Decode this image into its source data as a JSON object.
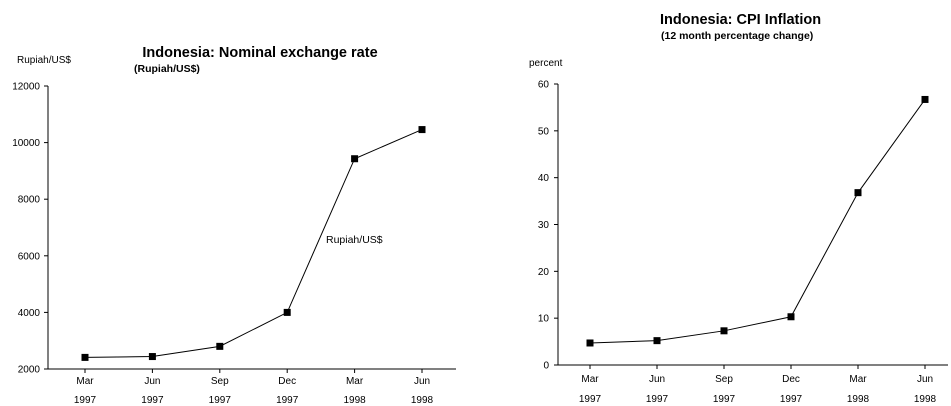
{
  "chart_data": [
    {
      "type": "line",
      "title": "Indonesia: Nominal exchange rate",
      "subtitle": "(Rupiah/US$)",
      "ylabel": "Rupiah/US$",
      "xlabel": "",
      "categories": [
        {
          "month": "Mar",
          "year": "1997"
        },
        {
          "month": "Jun",
          "year": "1997"
        },
        {
          "month": "Sep",
          "year": "1997"
        },
        {
          "month": "Dec",
          "year": "1997"
        },
        {
          "month": "Mar",
          "year": "1998"
        },
        {
          "month": "Jun",
          "year": "1998"
        }
      ],
      "ylim": [
        2000,
        12000
      ],
      "yticks": [
        2000,
        4000,
        6000,
        8000,
        10000,
        12000
      ],
      "grid": false,
      "series": [
        {
          "name": "Rupiah/US$",
          "values": [
            2410,
            2440,
            2800,
            4000,
            9430,
            10460
          ]
        }
      ],
      "annotations": [
        {
          "text": "Rupiah/US$"
        }
      ]
    },
    {
      "type": "line",
      "title": "Indonesia: CPI Inflation",
      "subtitle": "(12 month percentage change)",
      "ylabel": "percent",
      "xlabel": "",
      "categories": [
        {
          "month": "Mar",
          "year": "1997"
        },
        {
          "month": "Jun",
          "year": "1997"
        },
        {
          "month": "Sep",
          "year": "1997"
        },
        {
          "month": "Dec",
          "year": "1997"
        },
        {
          "month": "Mar",
          "year": "1998"
        },
        {
          "month": "Jun",
          "year": "1998"
        }
      ],
      "ylim": [
        0,
        60
      ],
      "yticks": [
        0,
        10,
        20,
        30,
        40,
        50,
        60
      ],
      "grid": false,
      "series": [
        {
          "values": [
            4.7,
            5.2,
            7.3,
            10.3,
            36.8,
            56.7
          ]
        }
      ],
      "annotations": []
    }
  ]
}
